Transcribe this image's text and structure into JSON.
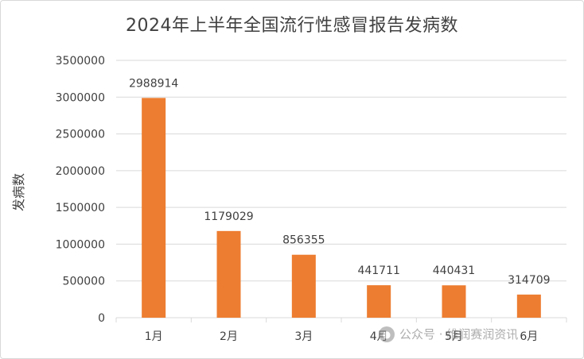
{
  "chart_data": {
    "type": "bar",
    "title": "2024年上半年全国流行性感冒报告发病数",
    "xlabel": "",
    "ylabel": "发病数",
    "categories": [
      "1月",
      "2月",
      "3月",
      "4月",
      "5月",
      "6月"
    ],
    "values": [
      2988914,
      1179029,
      856355,
      441711,
      440431,
      314709
    ],
    "data_labels": [
      "2988914",
      "1179029",
      "856355",
      "441711",
      "440431",
      "314709"
    ],
    "ylim": [
      0,
      3500000
    ],
    "yticks": [
      0,
      500000,
      1000000,
      1500000,
      2000000,
      2500000,
      3000000,
      3500000
    ],
    "ytick_labels": [
      "0",
      "500000",
      "1000000",
      "1500000",
      "2000000",
      "2500000",
      "3000000",
      "3500000"
    ],
    "grid": true,
    "bar_color": "#ED7D31",
    "grid_color": "#d9d9d9"
  },
  "watermark": {
    "text": "公众号 · 维润赛润资讯",
    "icon": "wechat-icon"
  }
}
